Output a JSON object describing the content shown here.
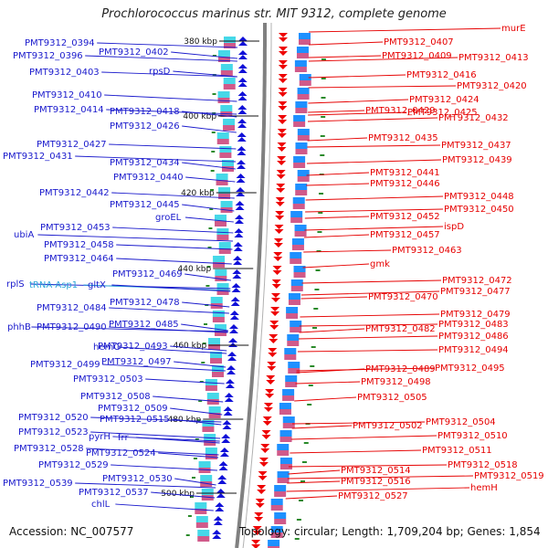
{
  "title": "Prochlorococcus marinus str. MIT 9312, complete genome",
  "footer": {
    "accession": "Accession: NC_007577",
    "topology": "Topology: circular; Length: 1,709,204 bp; Genes: 1,854"
  },
  "colors": {
    "left_genes": "#1a1acc",
    "right_genes": "#e60000",
    "rna": "#2aa5d8",
    "backbone": "#808080",
    "scale_tick": "#2a8a2a"
  },
  "scale_labels": [
    "380 kbp",
    "400 kbp",
    "420 kbp",
    "440 kbp",
    "460 kbp",
    "480 kbp",
    "500 kbp"
  ],
  "left_labels": [
    "PMT9312_0394",
    "PMT9312_0396",
    "PMT9312_0402",
    "PMT9312_0403",
    "rpsD",
    "PMT9312_0410",
    "PMT9312_0414",
    "PMT9312_0418",
    "PMT9312_0426",
    "PMT9312_0427",
    "PMT9312_0431",
    "PMT9312_0434",
    "PMT9312_0440",
    "PMT9312_0442",
    "PMT9312_0445",
    "groEL",
    "PMT9312_0453",
    "ubiA",
    "PMT9312_0458",
    "PMT9312_0464",
    "PMT9312_0469",
    "rplS",
    "tRNA-Asp1",
    "gltX",
    "PMT9312_0478",
    "PMT9312_0484",
    "PMT9312_0485",
    "phhB",
    "PMT9312_0490",
    "hemC",
    "PMT9312_0493",
    "PMT9312_0497",
    "PMT9312_0499",
    "PMT9312_0503",
    "PMT9312_0508",
    "PMT9312_0509",
    "PMT9312_0520",
    "PMT9312_0515",
    "PMT9312_0523",
    "pyrH",
    "frr",
    "PMT9312_0528",
    "PMT9312_0524",
    "PMT9312_0529",
    "PMT9312_0530",
    "PMT9312_0539",
    "PMT9312_0537",
    "chlL"
  ],
  "right_labels": [
    "murE",
    "PMT9312_0407",
    "PMT9312_0409",
    "PMT9312_0413",
    "PMT9312_0416",
    "PMT9312_0420",
    "PMT9312_0424",
    "PMT9312_0425",
    "PMT9312_0429",
    "PMT9312_0432",
    "PMT9312_0435",
    "PMT9312_0437",
    "PMT9312_0439",
    "PMT9312_0441",
    "PMT9312_0446",
    "PMT9312_0448",
    "PMT9312_0450",
    "PMT9312_0452",
    "ispD",
    "PMT9312_0457",
    "PMT9312_0463",
    "gmk",
    "PMT9312_0472",
    "PMT9312_0470",
    "PMT9312_0477",
    "PMT9312_0479",
    "PMT9312_0483",
    "PMT9312_0482",
    "PMT9312_0486",
    "PMT9312_0494",
    "PMT9312_0489",
    "PMT9312_0495",
    "PMT9312_0498",
    "PMT9312_0505",
    "PMT9312_0502",
    "PMT9312_0504",
    "PMT9312_0510",
    "PMT9312_0511",
    "PMT9312_0518",
    "PMT9312_0514",
    "PMT9312_0519",
    "PMT9312_0516",
    "hemH",
    "PMT9312_0527"
  ]
}
